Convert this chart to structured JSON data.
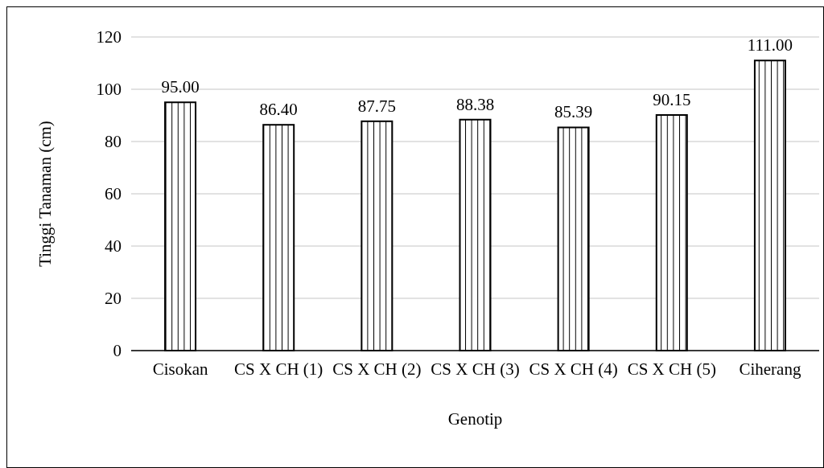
{
  "chart_data": {
    "type": "bar",
    "xlabel": "Genotip",
    "ylabel": "Tinggi Tanaman (cm)",
    "categories": [
      "Cisokan",
      "CS X CH (1)",
      "CS X CH (2)",
      "CS X CH (3)",
      "CS X CH (4)",
      "CS X CH (5)",
      "Ciherang"
    ],
    "values": [
      95.0,
      86.4,
      87.75,
      88.38,
      85.39,
      90.15,
      111.0
    ],
    "value_labels": [
      "95.00",
      "86.40",
      "87.75",
      "88.38",
      "85.39",
      "90.15",
      "111.00"
    ],
    "color": "#000000",
    "ylim": [
      0,
      120
    ],
    "yticks": [
      0,
      20,
      40,
      60,
      80,
      100,
      120
    ],
    "grid": "y"
  }
}
